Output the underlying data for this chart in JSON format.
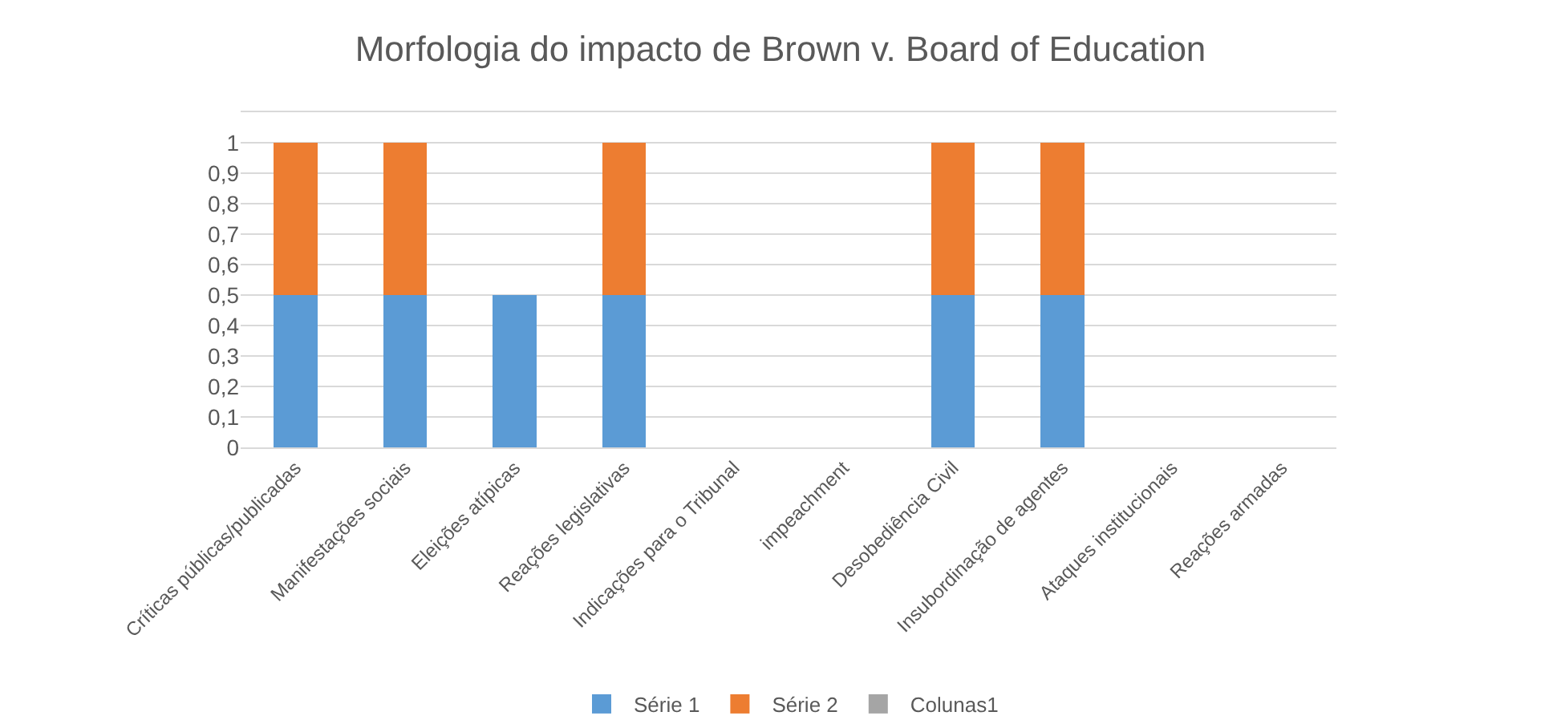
{
  "chart_data": {
    "type": "bar",
    "stacked": true,
    "title": "Morfologia do impacto de Brown v. Board of Education",
    "categories": [
      "Críticas públicas/publicadas",
      "Manifestações sociais",
      "Eleições atípicas",
      "Reações legislativas",
      "Indicações para o Tribunal",
      "impeachment",
      "Desobediência Civil",
      "Insubordinação de agentes",
      "Ataques institucionais",
      "Reações armadas"
    ],
    "series": [
      {
        "name": "Série 1",
        "color": "#5b9bd5",
        "values": [
          0.5,
          0.5,
          0.5,
          0.5,
          0,
          0,
          0.5,
          0.5,
          0,
          0
        ]
      },
      {
        "name": "Série 2",
        "color": "#ed7d31",
        "values": [
          0.5,
          0.5,
          0,
          0.5,
          0,
          0,
          0.5,
          0.5,
          0,
          0
        ]
      },
      {
        "name": "Colunas1",
        "color": "#a5a5a5",
        "values": [
          0,
          0,
          0,
          0,
          0,
          0,
          0,
          0,
          0,
          0
        ]
      }
    ],
    "ylim": [
      0,
      1.1
    ],
    "yticks": [
      {
        "value": 0,
        "label": "0"
      },
      {
        "value": 0.1,
        "label": "0,1"
      },
      {
        "value": 0.2,
        "label": "0,2"
      },
      {
        "value": 0.3,
        "label": "0,3"
      },
      {
        "value": 0.4,
        "label": "0,4"
      },
      {
        "value": 0.5,
        "label": "0,5"
      },
      {
        "value": 0.6,
        "label": "0,6"
      },
      {
        "value": 0.7,
        "label": "0,7"
      },
      {
        "value": 0.8,
        "label": "0,8"
      },
      {
        "value": 0.9,
        "label": "0,9"
      },
      {
        "value": 1,
        "label": "1"
      },
      {
        "value": 1.1,
        "label": null
      }
    ],
    "grid": "y",
    "legend": "bottom"
  }
}
